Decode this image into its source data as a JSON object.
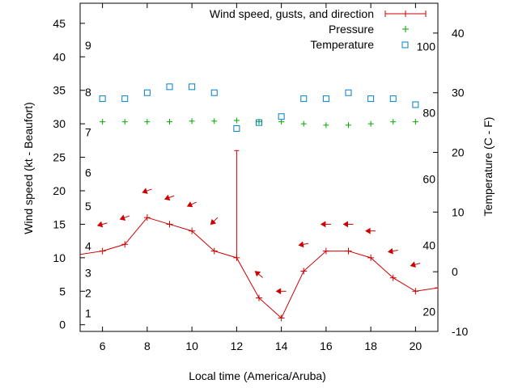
{
  "chart_data": {
    "type": "line",
    "xlabel": "Local time (America/Aruba)",
    "ylabel_left": "Wind speed (kt - Beaufort)",
    "ylabel_right": "Temperature (C - F)",
    "xlim": [
      5,
      21
    ],
    "ylim_left": [
      -1,
      48
    ],
    "ylim_right": [
      -10,
      45
    ],
    "xticks": [
      "6",
      "8",
      "10",
      "12",
      "14",
      "16",
      "18",
      "20"
    ],
    "yticks_left": [
      "0",
      "5",
      "10",
      "15",
      "20",
      "25",
      "30",
      "35",
      "40",
      "45"
    ],
    "yticks_right": [
      "-10",
      "0",
      "10",
      "20",
      "30",
      "40"
    ],
    "beaufort_labels": [
      "1",
      "2",
      "3",
      "4",
      "5",
      "6",
      "7",
      "8",
      "9"
    ],
    "fahrenheit_labels": [
      "20",
      "40",
      "60",
      "80",
      "100"
    ],
    "legend": {
      "placement": "top-right",
      "wind": "Wind speed, gusts, and direction",
      "pressure": "Pressure",
      "temperature": "Temperature"
    },
    "series": [
      {
        "name": "Wind speed, gusts, and direction",
        "color": "#cc0000",
        "x": [
          4,
          6,
          7,
          8,
          9,
          10,
          11,
          12,
          13,
          14,
          15,
          16,
          17,
          18,
          19,
          20,
          21
        ],
        "values": [
          10,
          11,
          12,
          16,
          15,
          14,
          11,
          10,
          4,
          1,
          8,
          11,
          11,
          10,
          7,
          5,
          5.5
        ],
        "gust": {
          "x": 12,
          "value": 26
        }
      },
      {
        "name": "Pressure",
        "color": "#00aa00",
        "x": [
          6,
          7,
          8,
          9,
          10,
          11,
          12,
          13,
          14,
          15,
          16,
          17,
          18,
          19,
          20
        ],
        "values": [
          30.3,
          30.3,
          30.3,
          30.3,
          30.4,
          30.4,
          30.5,
          30.3,
          30.3,
          30.0,
          29.8,
          29.8,
          30.0,
          30.3,
          30.3
        ]
      },
      {
        "name": "Temperature",
        "color": "#0080cc",
        "x": [
          6,
          7,
          8,
          9,
          10,
          11,
          12,
          13,
          14,
          15,
          16,
          17,
          18,
          19,
          20
        ],
        "values": [
          29,
          29,
          30,
          31,
          31,
          30,
          24,
          25,
          26,
          29,
          29,
          30,
          29,
          29,
          28
        ]
      }
    ],
    "wind_direction": {
      "x": [
        6,
        7,
        8,
        9,
        10,
        11,
        13,
        14,
        15,
        16,
        17,
        18,
        19,
        20
      ],
      "at_speed": [
        15,
        16,
        20,
        19,
        18,
        15.5,
        7.5,
        5,
        12,
        15,
        15,
        14,
        11,
        9
      ],
      "angle_deg": [
        -15,
        -20,
        -20,
        -20,
        -25,
        -45,
        40,
        0,
        -10,
        0,
        0,
        0,
        -10,
        -15
      ]
    }
  }
}
